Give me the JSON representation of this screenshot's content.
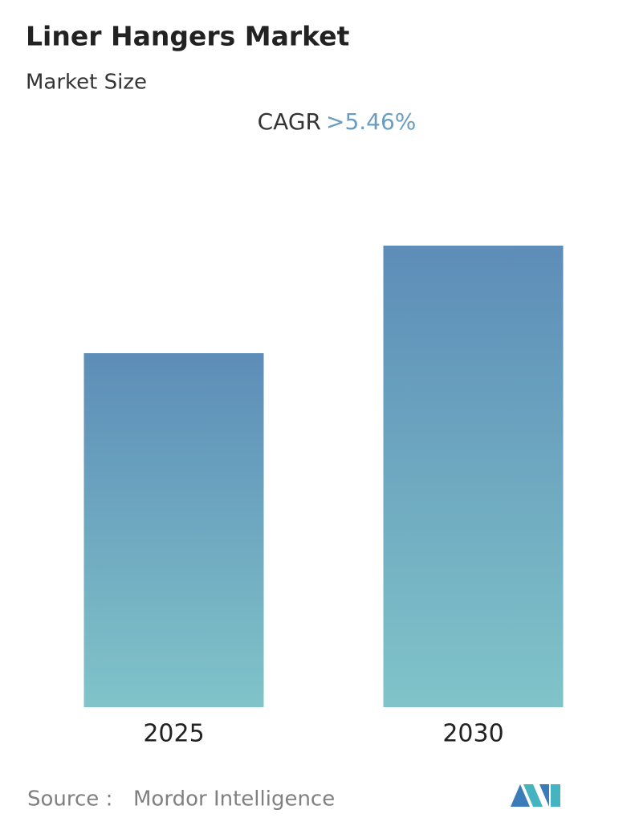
{
  "chart_data": {
    "type": "bar",
    "title": "Liner Hangers Market",
    "subtitle": "Market Size",
    "cagr_label": "CAGR",
    "cagr_value": ">5.46%",
    "categories": [
      "2025",
      "2030"
    ],
    "values": [
      44.1,
      57.5
    ],
    "ylim": [
      0,
      60
    ],
    "gradient": [
      "#5d8db8",
      "#80c4c9"
    ],
    "source_label": "Source :",
    "source": "Mordor Intelligence"
  }
}
